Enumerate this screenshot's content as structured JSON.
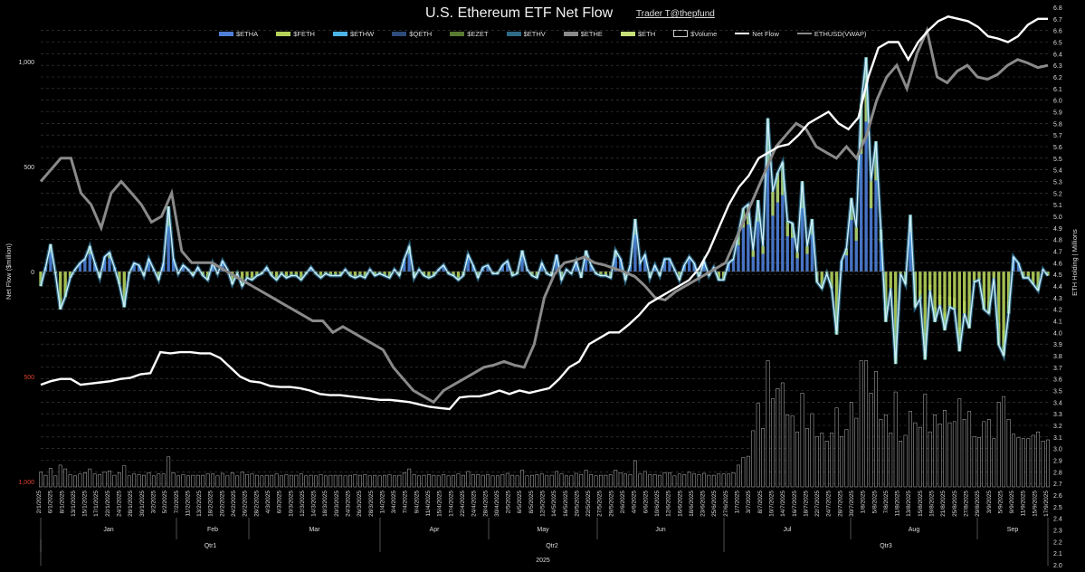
{
  "title": "U.S. Ethereum ETF Net Flow",
  "credit": "Trader T@thepfund",
  "chart_data": {
    "type": "bar",
    "title": "U.S. Ethereum ETF Net Flow",
    "ylabel": "Net Flow ($million)",
    "y2label": "ETH Holding | Millions",
    "ylim": [
      -1000,
      1250
    ],
    "y2lim": [
      2.0,
      6.8
    ],
    "yticks": [
      1000,
      500,
      0,
      -500,
      -1000
    ],
    "ytick_labels": [
      "1,000",
      "500",
      "0",
      "500",
      "1,000"
    ],
    "y2ticks": [
      2.0,
      2.1,
      2.2,
      2.3,
      2.4,
      2.5,
      2.6,
      2.7,
      2.8,
      2.9,
      3.0,
      3.1,
      3.2,
      3.3,
      3.4,
      3.5,
      3.6,
      3.7,
      3.8,
      3.9,
      4.0,
      4.1,
      4.2,
      4.3,
      4.4,
      4.5,
      4.6,
      4.7,
      4.8,
      4.9,
      5.0,
      5.1,
      5.2,
      5.3,
      5.4,
      5.5,
      5.6,
      5.7,
      5.8,
      5.9,
      6.0,
      6.1,
      6.2,
      6.3,
      6.4,
      6.5,
      6.6,
      6.7,
      6.8
    ],
    "grid": true,
    "legend_position": "top",
    "legend": [
      {
        "name": "$ETHA",
        "color": "#4f7fd8",
        "kind": "bar"
      },
      {
        "name": "$FETH",
        "color": "#b5d35a",
        "kind": "bar"
      },
      {
        "name": "$ETHW",
        "color": "#4bb3e6",
        "kind": "bar"
      },
      {
        "name": "$QETH",
        "color": "#2e4b7a",
        "kind": "bar"
      },
      {
        "name": "$EZET",
        "color": "#5a7a32",
        "kind": "bar"
      },
      {
        "name": "$ETHV",
        "color": "#2f6a86",
        "kind": "bar"
      },
      {
        "name": "$ETHE",
        "color": "#8a8a8a",
        "kind": "bar"
      },
      {
        "name": "$ETH",
        "color": "#c8e07a",
        "kind": "bar"
      },
      {
        "name": "$Volume",
        "color": "#cccccc",
        "kind": "box"
      },
      {
        "name": "Net Flow",
        "color": "#ffffff",
        "kind": "line"
      },
      {
        "name": "ETHUSD(VWAP)",
        "color": "#8a8a8a",
        "kind": "line"
      }
    ],
    "date_labels": [
      "2/1/2025",
      "6/1/2025",
      "8/1/2025",
      "13/1/2025",
      "15/1/2025",
      "17/1/2025",
      "22/1/2025",
      "24/1/2025",
      "28/1/2025",
      "30/1/2025",
      "3/2/2025",
      "5/2/2025",
      "7/2/2025",
      "11/2/2025",
      "13/2/2025",
      "18/2/2025",
      "20/2/2025",
      "24/2/2025",
      "26/2/2025",
      "28/2/2025",
      "4/3/2025",
      "6/3/2025",
      "10/3/2025",
      "12/3/2025",
      "14/3/2025",
      "18/3/2025",
      "20/3/2025",
      "24/3/2025",
      "26/3/2025",
      "28/3/2025",
      "1/4/2025",
      "3/4/2025",
      "7/4/2025",
      "9/4/2025",
      "11/4/2025",
      "15/4/2025",
      "17/4/2025",
      "22/4/2025",
      "24/4/2025",
      "28/4/2025",
      "30/4/2025",
      "2/5/2025",
      "6/5/2025",
      "8/5/2025",
      "12/5/2025",
      "14/5/2025",
      "16/5/2025",
      "20/5/2025",
      "22/5/2025",
      "27/5/2025",
      "29/5/2025",
      "2/6/2025",
      "4/6/2025",
      "6/6/2025",
      "10/6/2025",
      "12/6/2025",
      "16/6/2025",
      "18/6/2025",
      "23/6/2025",
      "25/6/2025",
      "27/6/2025",
      "1/7/2025",
      "3/7/2025",
      "8/7/2025",
      "10/7/2025",
      "14/7/2025",
      "16/7/2025",
      "18/7/2025",
      "22/7/2025",
      "24/7/2025",
      "28/7/2025",
      "30/7/2025",
      "1/8/2025",
      "5/8/2025",
      "7/8/2025",
      "11/8/2025",
      "13/8/2025",
      "15/8/2025",
      "19/8/2025",
      "21/8/2025",
      "25/8/2025",
      "27/8/2025",
      "29/8/2025",
      "3/9/2025",
      "5/9/2025",
      "9/9/2025",
      "11/9/2025",
      "15/9/2025",
      "17/9/2025"
    ],
    "months": [
      "Jan",
      "Feb",
      "Mar",
      "Apr",
      "May",
      "Jun",
      "Jul",
      "Aug",
      "Sep"
    ],
    "quarters": [
      "Qtr1",
      "Qtr2",
      "Qtr3"
    ],
    "year": "2025",
    "net_flow_millions": [
      -70,
      20,
      130,
      -10,
      -180,
      -120,
      -30,
      10,
      40,
      60,
      120,
      40,
      -30,
      70,
      90,
      20,
      -60,
      -170,
      -10,
      40,
      30,
      -20,
      60,
      10,
      -40,
      40,
      310,
      60,
      -10,
      30,
      10,
      -20,
      20,
      -20,
      -40,
      40,
      -10,
      50,
      10,
      -60,
      -10,
      -70,
      -30,
      -40,
      -20,
      -10,
      20,
      -20,
      -40,
      -10,
      -30,
      -20,
      -20,
      -40,
      -10,
      20,
      -10,
      -30,
      -10,
      -20,
      -20,
      -20,
      10,
      -20,
      -30,
      -20,
      -30,
      10,
      -20,
      -10,
      -20,
      -30,
      10,
      -20,
      60,
      120,
      -30,
      10,
      -20,
      -30,
      -20,
      10,
      30,
      -10,
      -20,
      -40,
      -20,
      80,
      30,
      -30,
      20,
      30,
      -10,
      -10,
      30,
      50,
      -20,
      -10,
      100,
      10,
      -20,
      -30,
      40,
      -10,
      -20,
      80,
      -40,
      10,
      -10,
      50,
      -30,
      100,
      30,
      -10,
      -20,
      -20,
      -30,
      100,
      60,
      -40,
      30,
      250,
      40,
      80,
      -30,
      30,
      -20,
      60,
      60,
      10,
      -40,
      30,
      70,
      40,
      -30,
      50,
      -20,
      20,
      -40,
      -40,
      40,
      60,
      180,
      300,
      320,
      100,
      340,
      120,
      730,
      380,
      470,
      520,
      240,
      230,
      90,
      430,
      120,
      250,
      -50,
      -80,
      -10,
      -80,
      -300,
      50,
      110,
      350,
      210,
      800,
      1020,
      430,
      620,
      200,
      -240,
      -80,
      -440,
      -10,
      -60,
      270,
      -170,
      -130,
      -420,
      -90,
      -240,
      -160,
      -280,
      -170,
      -180,
      -380,
      -200,
      -270,
      -50,
      -40,
      -180,
      -200,
      -30,
      -350,
      -400,
      -200,
      70,
      40,
      -30,
      -30,
      -60,
      -90,
      10,
      -20
    ],
    "holding_millions": [
      3.55,
      3.58,
      3.6,
      3.6,
      3.55,
      3.56,
      3.57,
      3.58,
      3.6,
      3.61,
      3.64,
      3.65,
      3.83,
      3.82,
      3.83,
      3.83,
      3.82,
      3.82,
      3.78,
      3.7,
      3.62,
      3.58,
      3.57,
      3.54,
      3.53,
      3.53,
      3.52,
      3.5,
      3.47,
      3.46,
      3.46,
      3.45,
      3.44,
      3.43,
      3.42,
      3.42,
      3.41,
      3.4,
      3.38,
      3.36,
      3.35,
      3.34,
      3.44,
      3.45,
      3.45,
      3.47,
      3.5,
      3.47,
      3.5,
      3.48,
      3.5,
      3.52,
      3.6,
      3.7,
      3.75,
      3.9,
      3.95,
      4.0,
      4.0,
      4.07,
      4.15,
      4.25,
      4.3,
      4.35,
      4.4,
      4.45,
      4.55,
      4.7,
      4.9,
      5.1,
      5.25,
      5.35,
      5.5,
      5.55,
      5.6,
      5.62,
      5.7,
      5.8,
      5.85,
      5.9,
      5.8,
      5.75,
      5.85,
      6.2,
      6.45,
      6.5,
      6.5,
      6.35,
      6.5,
      6.6,
      6.68,
      6.72,
      6.7,
      6.68,
      6.63,
      6.55,
      6.53,
      6.5,
      6.55,
      6.65,
      6.7,
      6.7
    ],
    "ethusd_vwap_scaled": [
      5.3,
      5.4,
      5.5,
      5.5,
      5.2,
      5.1,
      4.9,
      5.2,
      5.3,
      5.2,
      5.1,
      4.95,
      5.0,
      5.2,
      4.7,
      4.6,
      4.6,
      4.6,
      4.55,
      4.5,
      4.45,
      4.4,
      4.35,
      4.3,
      4.25,
      4.2,
      4.15,
      4.1,
      4.1,
      4.0,
      4.05,
      4.0,
      3.95,
      3.9,
      3.85,
      3.7,
      3.6,
      3.5,
      3.45,
      3.4,
      3.5,
      3.55,
      3.6,
      3.65,
      3.7,
      3.72,
      3.75,
      3.72,
      3.7,
      3.9,
      4.3,
      4.5,
      4.6,
      4.62,
      4.65,
      4.6,
      4.58,
      4.55,
      4.52,
      4.48,
      4.4,
      4.3,
      4.28,
      4.35,
      4.4,
      4.45,
      4.5,
      4.55,
      4.6,
      4.8,
      5.0,
      5.2,
      5.4,
      5.6,
      5.7,
      5.8,
      5.75,
      5.6,
      5.55,
      5.5,
      5.6,
      5.5,
      5.7,
      6.0,
      6.2,
      6.3,
      6.1,
      6.4,
      6.6,
      6.2,
      6.15,
      6.25,
      6.3,
      6.2,
      6.18,
      6.22,
      6.3,
      6.35,
      6.32,
      6.28,
      6.3
    ]
  }
}
